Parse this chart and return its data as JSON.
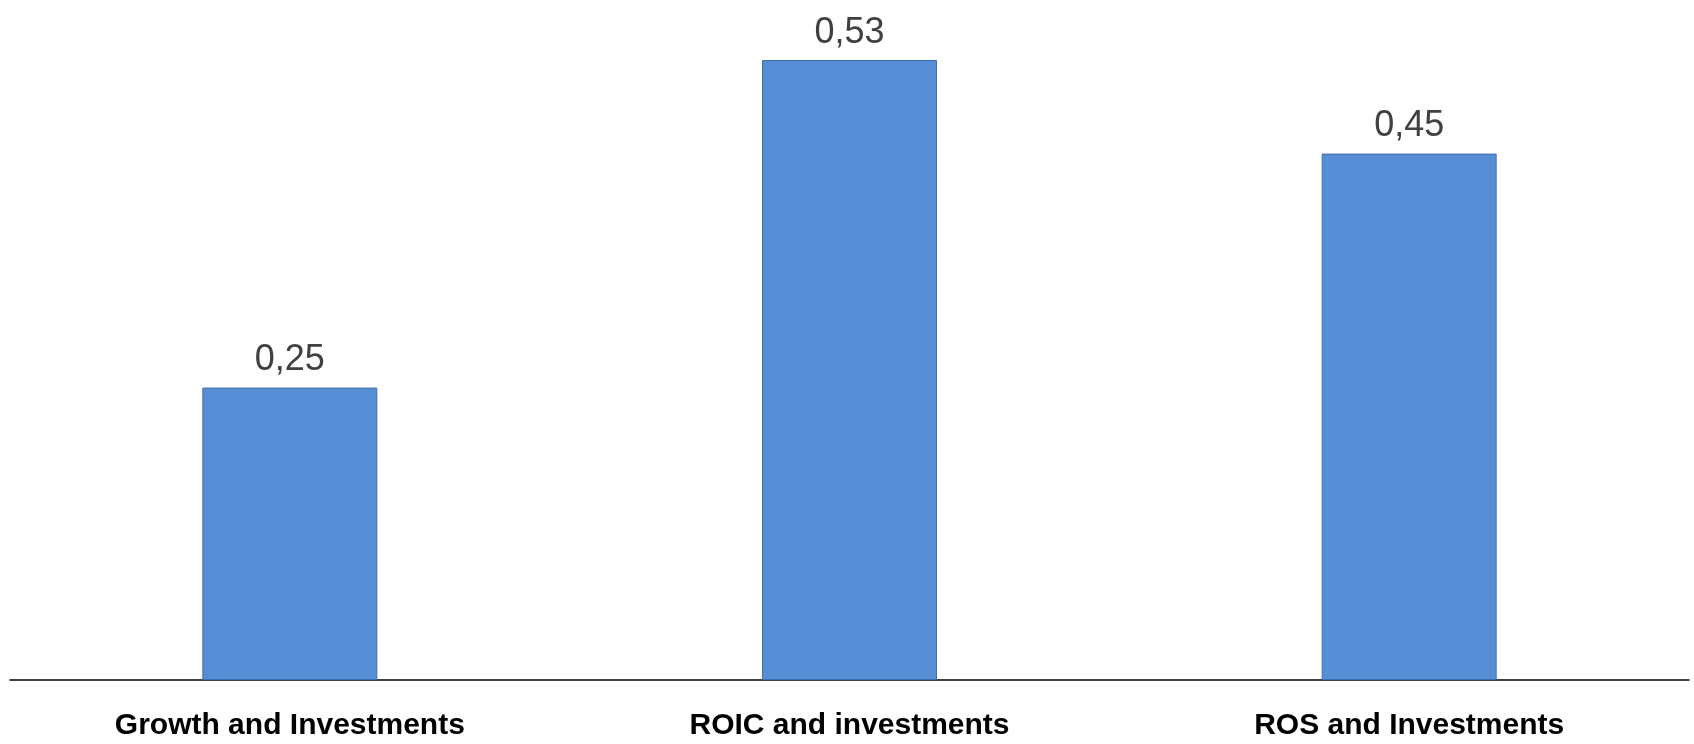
{
  "chart_data": {
    "type": "bar",
    "categories": [
      "Growth and Investments",
      "ROIC and investments",
      "ROS and Investments"
    ],
    "values": [
      0.25,
      0.53,
      0.45
    ],
    "value_labels": [
      "0,25",
      "0,53",
      "0,45"
    ],
    "color": "#558ed5"
  }
}
